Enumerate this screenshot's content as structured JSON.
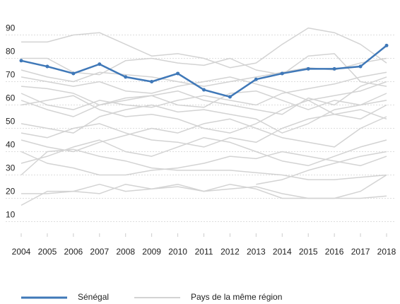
{
  "chart_data": {
    "type": "line",
    "x": [
      2004,
      2005,
      2006,
      2007,
      2008,
      2009,
      2010,
      2011,
      2012,
      2013,
      2014,
      2015,
      2016,
      2017,
      2018
    ],
    "series": [
      {
        "name": "Sénégal",
        "color": "#3f78b8",
        "values": [
          79,
          76.5,
          73.5,
          77.5,
          72,
          70,
          73.5,
          66.5,
          63.5,
          71,
          73.5,
          75.5,
          75.5,
          76.5,
          85.5
        ]
      }
    ],
    "background": {
      "name": "Pays de la même région",
      "color": "#d3d3d3",
      "lines": [
        [
          87,
          87,
          90,
          91,
          86,
          81,
          82,
          80,
          76,
          78,
          86,
          93,
          91,
          86,
          78
        ],
        [
          80,
          80,
          74,
          73,
          79,
          80,
          78,
          77,
          80,
          75,
          73,
          81,
          82,
          70,
          68
        ],
        [
          68,
          67,
          65,
          60,
          62,
          64,
          66,
          62,
          60,
          58,
          56,
          63,
          60,
          68,
          72
        ],
        [
          65,
          60,
          58,
          62,
          60,
          59,
          62,
          64,
          62,
          60,
          65,
          67,
          69,
          72,
          74
        ],
        [
          52,
          50,
          48,
          55,
          58,
          60,
          57,
          58,
          56,
          54,
          48,
          52,
          58,
          60,
          62
        ],
        [
          45,
          42,
          40,
          44,
          47,
          50,
          48,
          52,
          54,
          50,
          46,
          44,
          42,
          50,
          55
        ],
        [
          40,
          35,
          33,
          30,
          30,
          32,
          33,
          35,
          38,
          37,
          40,
          38,
          36,
          34,
          38
        ],
        [
          30,
          40,
          41,
          38,
          36,
          33,
          32,
          32,
          32,
          31,
          30,
          28,
          28,
          29,
          30
        ],
        [
          22,
          22,
          23,
          22,
          26,
          24,
          25,
          23,
          24,
          25,
          22,
          20,
          20,
          23,
          30
        ],
        [
          17,
          23,
          23,
          26,
          23,
          24,
          26,
          23,
          26,
          24,
          20,
          20,
          20,
          20,
          21
        ],
        [
          null,
          null,
          null,
          null,
          null,
          null,
          null,
          null,
          null,
          26,
          28,
          32,
          35,
          38,
          40
        ],
        [
          72,
          70,
          68,
          70,
          66,
          65,
          68,
          70,
          72,
          69,
          66,
          62,
          64,
          66,
          70
        ],
        [
          60,
          62,
          64,
          58,
          55,
          56,
          54,
          50,
          48,
          52,
          58,
          62,
          56,
          54,
          60
        ],
        [
          48,
          46,
          50,
          52,
          48,
          45,
          44,
          42,
          46,
          44,
          50,
          54,
          56,
          58,
          54
        ],
        [
          35,
          38,
          42,
          45,
          40,
          38,
          42,
          46,
          44,
          40,
          36,
          34,
          38,
          42,
          45
        ],
        [
          75,
          72,
          70,
          74,
          73,
          72,
          70,
          68,
          70,
          72,
          74,
          76,
          75,
          78,
          80
        ],
        [
          62,
          58,
          55,
          60,
          63,
          64,
          60,
          59,
          65,
          66,
          62,
          58,
          62,
          60,
          65
        ]
      ]
    },
    "xlim": [
      2004,
      2018
    ],
    "ylim": [
      5,
      95
    ],
    "yticks": [
      10,
      20,
      30,
      40,
      50,
      60,
      70,
      80,
      90
    ],
    "grid": true
  }
}
